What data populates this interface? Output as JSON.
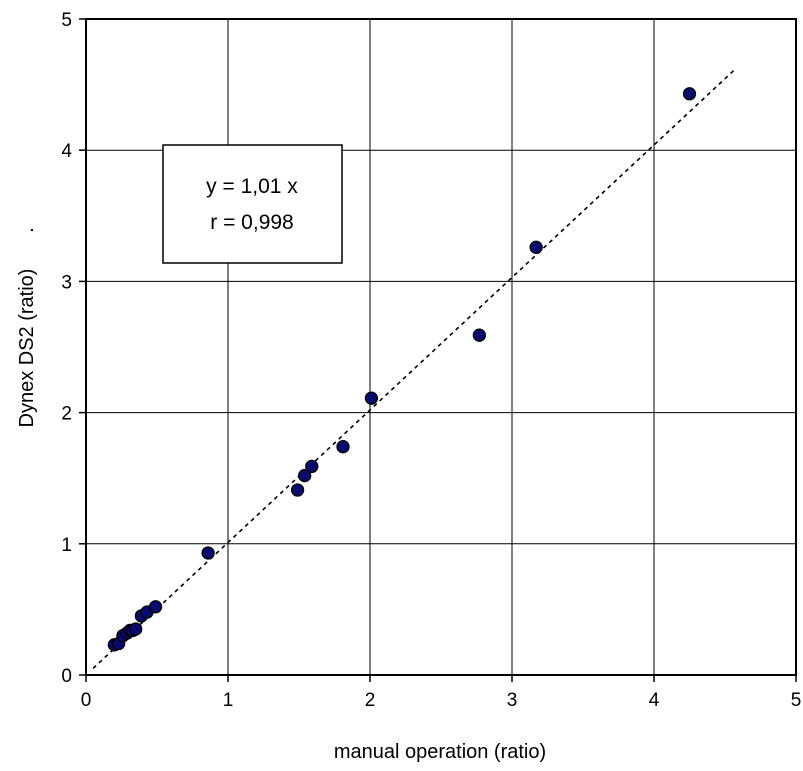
{
  "chart_data": {
    "type": "scatter",
    "xlabel": "manual operation (ratio)",
    "ylabel": "Dynex DS2 (ratio)",
    "ylabel_suffix": ".",
    "xlim": [
      0,
      5
    ],
    "ylim": [
      0,
      5
    ],
    "x_ticks": [
      0,
      1,
      2,
      3,
      4,
      5
    ],
    "y_ticks": [
      0,
      1,
      2,
      3,
      4,
      5
    ],
    "x_tick_labels": [
      "0",
      "1",
      "2",
      "3",
      "4",
      "5"
    ],
    "y_tick_labels": [
      "0",
      "1",
      "2",
      "3",
      "4",
      "5"
    ],
    "grid": true,
    "points": [
      {
        "x": 0.2,
        "y": 0.23
      },
      {
        "x": 0.23,
        "y": 0.24
      },
      {
        "x": 0.26,
        "y": 0.3
      },
      {
        "x": 0.29,
        "y": 0.32
      },
      {
        "x": 0.31,
        "y": 0.34
      },
      {
        "x": 0.33,
        "y": 0.34
      },
      {
        "x": 0.35,
        "y": 0.35
      },
      {
        "x": 0.39,
        "y": 0.45
      },
      {
        "x": 0.43,
        "y": 0.48
      },
      {
        "x": 0.49,
        "y": 0.52
      },
      {
        "x": 0.86,
        "y": 0.93
      },
      {
        "x": 1.49,
        "y": 1.41
      },
      {
        "x": 1.54,
        "y": 1.52
      },
      {
        "x": 1.59,
        "y": 1.59
      },
      {
        "x": 1.81,
        "y": 1.74
      },
      {
        "x": 2.01,
        "y": 2.11
      },
      {
        "x": 2.77,
        "y": 2.59
      },
      {
        "x": 3.17,
        "y": 3.26
      },
      {
        "x": 4.25,
        "y": 4.43
      }
    ],
    "trendline": {
      "slope": 1.01,
      "x_start": 0.05,
      "x_end": 4.57,
      "style": "dotted"
    },
    "annotation": {
      "line1": "y = 1,01 x",
      "line2": "r = 0,998",
      "position": "upper-left"
    },
    "colors": {
      "points": "#0a0a6e",
      "axes": "#000000",
      "background": "#ffffff"
    }
  }
}
